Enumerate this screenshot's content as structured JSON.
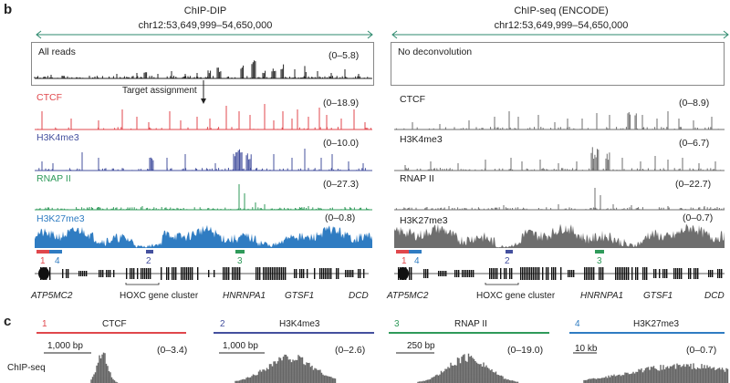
{
  "panel_b": {
    "letter": "b",
    "left": {
      "title": "ChIP-DIP",
      "coords": "chr12:53,649,999–54,650,000",
      "all_reads_label": "All reads",
      "all_reads_range": "(0–5.8)",
      "target_assignment": "Target assignment",
      "tracks": [
        {
          "label": "CTCF",
          "range": "(0–18.9)",
          "color": "#e0474c"
        },
        {
          "label": "H3K4me3",
          "range": "(0–10.0)",
          "color": "#44509e"
        },
        {
          "label": "RNAP II",
          "range": "(0–27.3)",
          "color": "#2f9a5a"
        },
        {
          "label": "H3K27me3",
          "range": "(0–0.8)",
          "color": "#2f7cc2"
        }
      ]
    },
    "right": {
      "title": "ChIP-seq (ENCODE)",
      "coords": "chr12:53,649,999–54,650,000",
      "no_deconv_label": "No deconvolution",
      "tracks": [
        {
          "label": "CTCF",
          "range": "(0–8.9)"
        },
        {
          "label": "H3K4me3",
          "range": "(0–6.7)"
        },
        {
          "label": "RNAP II",
          "range": "(0–22.7)"
        },
        {
          "label": "H3K27me3",
          "range": "(0–0.7)"
        }
      ],
      "track_color": "#6e6e6e"
    },
    "region_markers": [
      "1",
      "4",
      "2",
      "3"
    ],
    "genes": [
      "ATP5MC2",
      "HOXC gene cluster",
      "HNRNPA1",
      "GTSF1",
      "DCD"
    ]
  },
  "panel_c": {
    "letter": "c",
    "row_label": "ChIP-seq",
    "zooms": [
      {
        "num": "1",
        "target": "CTCF",
        "scale": "1,000 bp",
        "range": "(0–3.4)",
        "color": "#e0474c"
      },
      {
        "num": "2",
        "target": "H3K4me3",
        "scale": "1,000 bp",
        "range": "(0–2.6)",
        "color": "#44509e"
      },
      {
        "num": "3",
        "target": "RNAP II",
        "scale": "250 bp",
        "range": "(0–19.0)",
        "color": "#2f9a5a"
      },
      {
        "num": "4",
        "target": "H3K27me3",
        "scale": "10 kb",
        "range": "(0–0.7)",
        "color": "#2f7cc2"
      }
    ]
  }
}
